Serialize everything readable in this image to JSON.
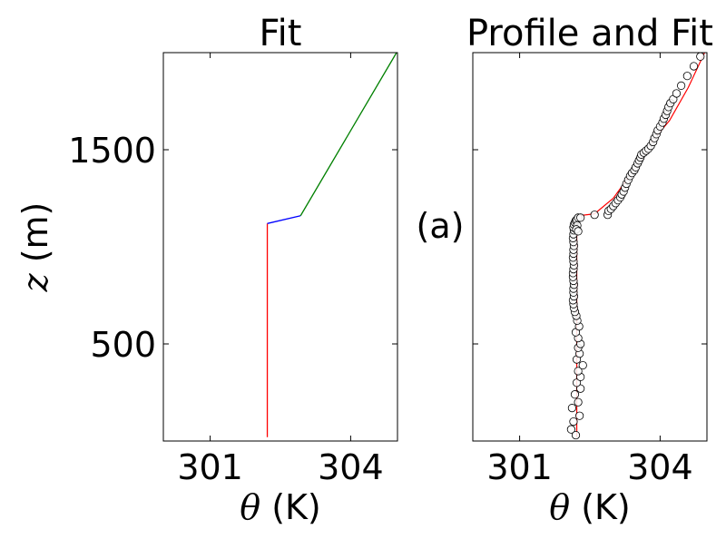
{
  "figure_annotation": "(a)",
  "chart_data": [
    {
      "type": "line",
      "title": "Fit",
      "xlabel_symbol": "θ",
      "xlabel_unit": "(K)",
      "ylabel_symbol": "z",
      "ylabel_unit": "(m)",
      "xlim": [
        300,
        305
      ],
      "ylim": [
        0,
        2000
      ],
      "xticks": [
        301,
        304
      ],
      "yticks": [
        500,
        1500
      ],
      "grid": false,
      "series": [
        {
          "color": "#ff0000",
          "x": [
            302.22,
            302.22
          ],
          "y": [
            20,
            1120
          ]
        },
        {
          "color": "#0000ff",
          "x": [
            302.22,
            302.93
          ],
          "y": [
            1120,
            1160
          ]
        },
        {
          "color": "#008000",
          "x": [
            302.93,
            304.98
          ],
          "y": [
            1160,
            2000
          ]
        }
      ]
    },
    {
      "type": "scatter",
      "title": "Profile and Fit",
      "xlabel_symbol": "θ",
      "xlabel_unit": "(K)",
      "xlim": [
        300,
        305
      ],
      "ylim": [
        0,
        2000
      ],
      "xticks": [
        301,
        304
      ],
      "yticks": [
        500,
        1500
      ],
      "grid": false,
      "fit_line": {
        "color": "#ff0000",
        "x": [
          302.22,
          302.22,
          302.25,
          302.6,
          303.0,
          303.3,
          303.6,
          303.85,
          304.2,
          304.6,
          304.95
        ],
        "y": [
          20,
          1120,
          1160,
          1170,
          1250,
          1350,
          1450,
          1550,
          1650,
          1820,
          2000
        ]
      },
      "profile_points": {
        "x": [
          302.2,
          302.1,
          302.15,
          302.28,
          302.12,
          302.25,
          302.18,
          302.3,
          302.22,
          302.3,
          302.25,
          302.35,
          302.22,
          302.28,
          302.25,
          302.3,
          302.25,
          302.2,
          302.27,
          302.23,
          302.21,
          302.18,
          302.16,
          302.15,
          302.14,
          302.16,
          302.15,
          302.15,
          302.16,
          302.15,
          302.14,
          302.14,
          302.15,
          302.16,
          302.15,
          302.14,
          302.15,
          302.15,
          302.16,
          302.15,
          302.14,
          302.15,
          302.16,
          302.15,
          302.16,
          302.18,
          302.2,
          302.22,
          302.25,
          302.23,
          302.21,
          302.25,
          302.3,
          302.6,
          302.88,
          302.9,
          302.95,
          303.0,
          303.05,
          303.1,
          303.15,
          303.18,
          303.22,
          303.25,
          303.28,
          303.32,
          303.36,
          303.4,
          303.45,
          303.48,
          303.52,
          303.55,
          303.58,
          303.6,
          303.65,
          303.7,
          303.75,
          303.8,
          303.85,
          303.88,
          303.92,
          303.95,
          304.0,
          304.05,
          304.08,
          304.12,
          304.15,
          304.18,
          304.22,
          304.28,
          304.35,
          304.45,
          304.58,
          304.72,
          304.86
        ],
        "y": [
          30,
          60,
          100,
          130,
          170,
          200,
          240,
          270,
          300,
          330,
          360,
          390,
          420,
          450,
          480,
          500,
          530,
          560,
          590,
          620,
          645,
          665,
          685,
          705,
          725,
          745,
          765,
          785,
          805,
          825,
          845,
          865,
          885,
          905,
          925,
          945,
          965,
          985,
          1005,
          1025,
          1045,
          1065,
          1085,
          1100,
          1115,
          1125,
          1135,
          1140,
          1150,
          1110,
          1090,
          1080,
          1150,
          1165,
          1165,
          1185,
          1195,
          1210,
          1225,
          1240,
          1255,
          1270,
          1285,
          1305,
          1325,
          1345,
          1365,
          1380,
          1395,
          1410,
          1430,
          1445,
          1460,
          1475,
          1485,
          1495,
          1505,
          1520,
          1540,
          1560,
          1580,
          1600,
          1620,
          1640,
          1660,
          1680,
          1700,
          1720,
          1740,
          1760,
          1790,
          1830,
          1880,
          1930,
          1980
        ]
      }
    }
  ]
}
